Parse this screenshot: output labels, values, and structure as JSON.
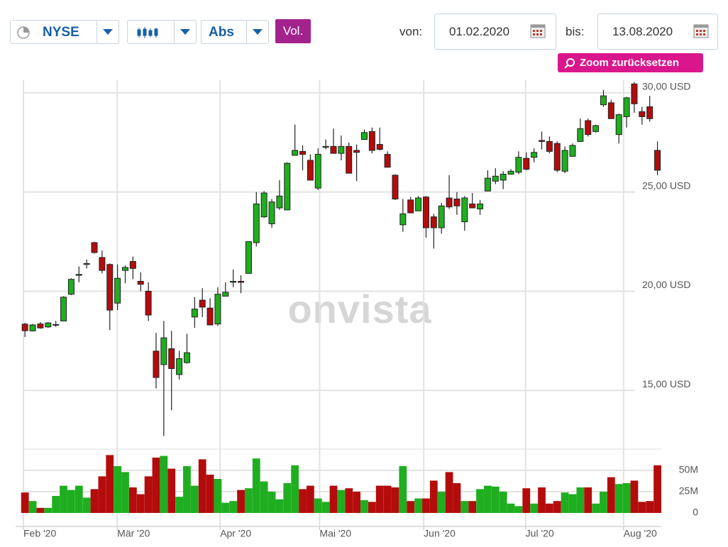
{
  "toolbar": {
    "exchange": "NYSE",
    "scale": "Abs",
    "volume": "Vol.",
    "from_label": "von:",
    "from": "01.02.2020",
    "to_label": "bis:",
    "to": "13.08.2020",
    "zoom_reset": "Zoom zurücksetzen"
  },
  "watermark": "onvista",
  "chart_data": {
    "type": "candlestick",
    "x": [
      0,
      1,
      2,
      3,
      4,
      5,
      6,
      7,
      8,
      9,
      10,
      11,
      12,
      13,
      14,
      15,
      16,
      17,
      18,
      19,
      20,
      21,
      22,
      23,
      24,
      25,
      26,
      27,
      28,
      29,
      30,
      31,
      32,
      33,
      34,
      35,
      36,
      37,
      38,
      39,
      40,
      41,
      42,
      43,
      44,
      45,
      46,
      47,
      48,
      49,
      50,
      51,
      52,
      53,
      54,
      55,
      56,
      57,
      58,
      59,
      60,
      61,
      62,
      63,
      64,
      65,
      66,
      67,
      68,
      69,
      70,
      71,
      72,
      73,
      74,
      75,
      76,
      77,
      78,
      79,
      80,
      81,
      82
    ],
    "open": [
      18.34,
      18.0,
      18.35,
      18.2,
      18.3,
      18.5,
      19.85,
      20.8,
      21.35,
      22.45,
      21.7,
      21.35,
      19.4,
      21.05,
      21.5,
      20.5,
      20.0,
      16.98,
      16.3,
      17.1,
      15.8,
      16.4,
      18.7,
      19.55,
      19.15,
      18.35,
      19.75,
      20.45,
      20.5,
      20.9,
      22.45,
      23.75,
      23.4,
      24.2,
      24.1,
      26.85,
      27.05,
      26.6,
      25.2,
      27.25,
      27.3,
      26.95,
      27.3,
      27.1,
      27.65,
      28.05,
      27.4,
      26.9,
      25.85,
      23.35,
      24.6,
      24.05,
      24.75,
      23.75,
      23.2,
      24.7,
      24.65,
      23.5,
      24.4,
      24.15,
      25.05,
      25.55,
      25.6,
      25.9,
      26.0,
      26.7,
      26.75,
      27.6,
      27.55,
      27.45,
      26.05,
      26.8,
      27.55,
      28.6,
      28.05,
      29.4,
      29.5,
      27.9,
      28.8,
      30.45,
      29.05,
      29.3,
      27.1
    ],
    "high": [
      18.41,
      18.35,
      18.45,
      18.45,
      18.5,
      19.75,
      20.65,
      21.25,
      21.6,
      22.5,
      22.05,
      21.4,
      21.35,
      21.3,
      21.75,
      20.95,
      20.45,
      17.9,
      18.5,
      18.0,
      17.0,
      17.85,
      19.7,
      20.15,
      19.65,
      20.2,
      20.45,
      21.1,
      20.8,
      22.5,
      25.0,
      25.05,
      24.65,
      25.6,
      26.5,
      28.4,
      27.35,
      26.9,
      27.2,
      27.65,
      28.2,
      27.85,
      27.5,
      27.4,
      28.15,
      28.25,
      28.25,
      27.05,
      25.9,
      24.65,
      24.75,
      24.8,
      24.8,
      23.9,
      24.45,
      25.85,
      25.0,
      24.8,
      24.95,
      24.6,
      26.1,
      26.2,
      26.05,
      26.15,
      27.05,
      27.0,
      27.2,
      28.05,
      27.8,
      27.55,
      27.3,
      27.45,
      28.7,
      28.7,
      28.4,
      30.15,
      29.65,
      28.95,
      29.8,
      30.55,
      29.3,
      29.85,
      27.55
    ],
    "low": [
      17.69,
      17.98,
      18.1,
      18.15,
      18.2,
      18.5,
      19.8,
      20.45,
      21.15,
      21.9,
      20.9,
      18.05,
      19.05,
      20.4,
      20.6,
      20.0,
      18.5,
      15.1,
      12.7,
      14.0,
      15.55,
      16.35,
      18.15,
      18.7,
      18.3,
      18.25,
      19.75,
      20.2,
      19.9,
      20.9,
      22.25,
      23.7,
      23.2,
      24.1,
      24.1,
      26.85,
      26.1,
      25.6,
      25.1,
      27.15,
      26.95,
      26.6,
      25.95,
      25.55,
      27.65,
      26.95,
      27.1,
      26.25,
      24.6,
      23.0,
      23.95,
      24.05,
      22.7,
      22.15,
      22.9,
      24.15,
      23.85,
      23.05,
      24.2,
      23.85,
      25.05,
      25.4,
      25.15,
      25.9,
      25.9,
      26.1,
      26.5,
      27.15,
      26.95,
      26.0,
      25.95,
      26.8,
      27.55,
      27.8,
      28.0,
      29.3,
      28.7,
      27.45,
      28.25,
      29.0,
      28.4,
      28.55,
      25.85
    ],
    "close": [
      18.01,
      18.3,
      18.15,
      18.4,
      18.32,
      19.7,
      20.6,
      20.85,
      21.4,
      21.95,
      21.05,
      19.05,
      20.65,
      21.2,
      21.15,
      20.35,
      18.8,
      15.65,
      17.65,
      16.1,
      16.6,
      16.9,
      19.1,
      19.2,
      18.3,
      19.85,
      19.95,
      20.5,
      20.45,
      22.5,
      24.4,
      24.95,
      24.5,
      24.8,
      26.45,
      27.1,
      26.9,
      25.6,
      26.9,
      27.3,
      26.95,
      27.3,
      25.95,
      27.0,
      28.0,
      27.1,
      27.15,
      26.25,
      24.65,
      23.9,
      23.95,
      24.7,
      23.2,
      23.2,
      24.3,
      24.25,
      24.3,
      24.7,
      24.2,
      24.4,
      25.7,
      25.8,
      25.9,
      26.05,
      26.75,
      26.15,
      27.0,
      27.55,
      27.05,
      26.1,
      27.1,
      27.35,
      28.2,
      27.9,
      28.35,
      29.85,
      28.7,
      28.9,
      29.75,
      29.45,
      28.8,
      28.7,
      26.1
    ],
    "xlim": [
      -0.2,
      82.5
    ],
    "xticks": [
      {
        "value": -0.2,
        "label": "Feb '20"
      },
      {
        "value": 11.96,
        "label": "Mär '20"
      },
      {
        "value": 25.3,
        "label": "Apr '20"
      },
      {
        "value": 38.2,
        "label": "Mai '20"
      },
      {
        "value": 51.7,
        "label": "Jun '20"
      },
      {
        "value": 64.9,
        "label": "Jul '20"
      },
      {
        "value": 77.6,
        "label": "Aug '20"
      }
    ],
    "ylim": [
      12.22,
      30.64
    ],
    "yticks": [
      {
        "value": 15,
        "label": "15,00 USD"
      },
      {
        "value": 20,
        "label": "20,00 USD"
      },
      {
        "value": 25,
        "label": "25,00 USD"
      },
      {
        "value": 30,
        "label": "30,00 USD"
      }
    ],
    "up_color": "#1fae1f",
    "down_color": "#b40c0c",
    "grid": true,
    "volume": {
      "values": [
        24,
        14,
        6,
        6,
        20,
        32,
        27,
        32,
        18,
        28,
        43,
        68,
        55,
        48,
        30,
        22,
        43,
        65,
        67,
        52,
        19,
        55,
        32,
        63,
        45,
        40,
        12,
        14,
        27,
        29,
        64,
        37,
        25,
        16,
        35,
        56,
        28,
        32,
        17,
        13,
        32,
        27,
        29,
        25,
        15,
        13,
        32,
        32,
        30,
        55,
        14,
        17,
        17,
        38,
        25,
        48,
        35,
        14,
        14,
        28,
        32,
        31,
        25,
        11,
        8,
        29,
        11,
        30,
        11,
        14,
        24,
        22,
        30,
        30,
        11,
        25,
        42,
        34,
        35,
        38,
        13,
        14,
        56
      ],
      "ylim": [
        0,
        75
      ],
      "yticks": [
        0,
        {
          "value": 25,
          "label": "25M"
        },
        {
          "value": 50,
          "label": "50M"
        }
      ]
    }
  }
}
